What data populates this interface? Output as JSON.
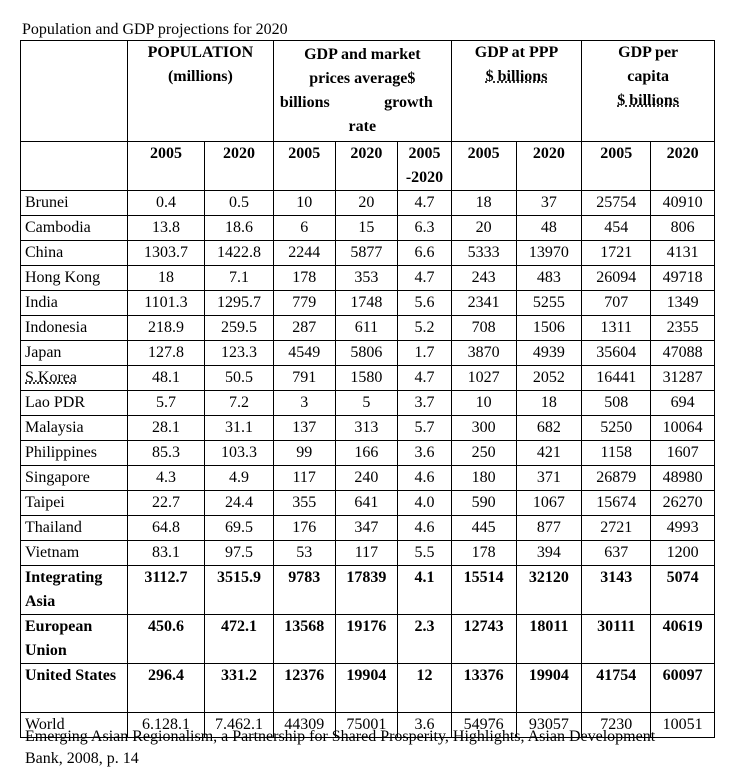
{
  "title": "Population and GDP projections for 2020",
  "headers": {
    "population_line1": "POPULATION",
    "population_line2": "(millions)",
    "gdp_market_line1": "GDP and market",
    "gdp_market_line2": "prices average$",
    "gdp_market_line3a": "billions",
    "gdp_market_line3b": "growth",
    "gdp_market_line4": "rate",
    "gdp_ppp_line1": "GDP at PPP",
    "gdp_ppp_line2": "$ billions",
    "gdp_capita_line1": "GDP per",
    "gdp_capita_line2": "capita",
    "gdp_capita_line3": "$ billions"
  },
  "years": [
    "2005",
    "2020",
    "2005",
    "2020",
    "2005",
    "-2020",
    "2005",
    "2020",
    "2005",
    "2020"
  ],
  "rows": [
    {
      "name": "Brunei",
      "v": [
        "0.4",
        "0.5",
        "10",
        "20",
        "4.7",
        "18",
        "37",
        "25754",
        "40910"
      ]
    },
    {
      "name": "Cambodia",
      "v": [
        "13.8",
        "18.6",
        "6",
        "15",
        "6.3",
        "20",
        "48",
        "454",
        "806"
      ]
    },
    {
      "name": "China",
      "v": [
        "1303.7",
        "1422.8",
        "2244",
        "5877",
        "6.6",
        "5333",
        "13970",
        "1721",
        "4131"
      ]
    },
    {
      "name": "Hong Kong",
      "v": [
        "18",
        "7.1",
        "178",
        "353",
        "4.7",
        "243",
        "483",
        "26094",
        "49718"
      ]
    },
    {
      "name": "India",
      "v": [
        "1101.3",
        "1295.7",
        "779",
        "1748",
        "5.6",
        "2341",
        "5255",
        "707",
        "1349"
      ]
    },
    {
      "name": "Indonesia",
      "v": [
        "218.9",
        "259.5",
        "287",
        "611",
        "5.2",
        "708",
        "1506",
        "1311",
        "2355"
      ]
    },
    {
      "name": "Japan",
      "v": [
        "127.8",
        "123.3",
        "4549",
        "5806",
        "1.7",
        "3870",
        "4939",
        "35604",
        "47088"
      ]
    },
    {
      "name": "S.Korea",
      "v": [
        "48.1",
        "50.5",
        "791",
        "1580",
        "4.7",
        "1027",
        "2052",
        "16441",
        "31287"
      ]
    },
    {
      "name": "Lao PDR",
      "v": [
        "5.7",
        "7.2",
        "3",
        "5",
        "3.7",
        "10",
        "18",
        "508",
        "694"
      ]
    },
    {
      "name": "Malaysia",
      "v": [
        "28.1",
        "31.1",
        "137",
        "313",
        "5.7",
        "300",
        "682",
        "5250",
        "10064"
      ]
    },
    {
      "name": "Philippines",
      "v": [
        "85.3",
        "103.3",
        "99",
        "166",
        "3.6",
        "250",
        "421",
        "1158",
        "1607"
      ]
    },
    {
      "name": "Singapore",
      "v": [
        "4.3",
        "4.9",
        "117",
        "240",
        "4.6",
        "180",
        "371",
        "26879",
        "48980"
      ]
    },
    {
      "name": "Taipei",
      "v": [
        "22.7",
        "24.4",
        "355",
        "641",
        "4.0",
        "590",
        "1067",
        "15674",
        "26270"
      ]
    },
    {
      "name": "Thailand",
      "v": [
        "64.8",
        "69.5",
        "176",
        "347",
        "4.6",
        "445",
        "877",
        "2721",
        "4993"
      ]
    },
    {
      "name": "Vietnam",
      "v": [
        "83.1",
        "97.5",
        "53",
        "117",
        "5.5",
        "178",
        "394",
        "637",
        "1200"
      ]
    }
  ],
  "bold_rows": [
    {
      "name": "Integrating Asia",
      "v": [
        "3112.7",
        "3515.9",
        "9783",
        "17839",
        "4.1",
        "15514",
        "32120",
        "3143",
        "5074"
      ]
    },
    {
      "name": "European Union",
      "v": [
        "450.6",
        "472.1",
        "13568",
        "19176",
        "2.3",
        "12743",
        "18011",
        "30111",
        "40619"
      ]
    },
    {
      "name": "United States",
      "v": [
        "296.4",
        "331.2",
        "12376",
        "19904",
        "12",
        "13376",
        "19904",
        "41754",
        "60097"
      ]
    }
  ],
  "world": {
    "name": "World",
    "v": [
      "6.128.1",
      "7.462.1",
      "44309",
      "75001",
      "3.6",
      "54976",
      "93057",
      "7230",
      "10051"
    ]
  },
  "caption": "Emerging Asian Regionalism, a Partnership for Shared Prosperity, Highlights, Asian Development Bank, 2008, p. 14"
}
